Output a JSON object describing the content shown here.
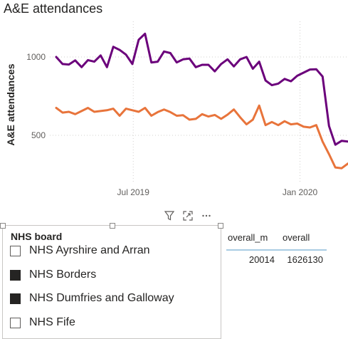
{
  "chart": {
    "title": "A&E attendances",
    "ylabel": "A&E attendances"
  },
  "chart_data": {
    "type": "line",
    "title": "A&E attendances",
    "ylabel": "A&E attendances",
    "xlabel": "",
    "x_start": "2019-04-07",
    "x_step_days": 7,
    "x_tick_labels": [
      "Jul 2019",
      "Jan 2020"
    ],
    "x_tick_dates": [
      "2019-07-01",
      "2020-01-01"
    ],
    "y_ticks": [
      500,
      1000
    ],
    "ylim": [
      250,
      1250
    ],
    "grid": true,
    "series": [
      {
        "color": "#6B007B",
        "values": [
          1000,
          955,
          952,
          978,
          935,
          980,
          970,
          1010,
          935,
          1065,
          1045,
          1015,
          955,
          1110,
          1148,
          965,
          970,
          1035,
          1025,
          965,
          985,
          990,
          935,
          950,
          950,
          908,
          955,
          985,
          940,
          985,
          1000,
          925,
          970,
          850,
          820,
          830,
          860,
          845,
          880,
          900,
          920,
          922,
          875,
          560,
          440,
          465,
          460
        ]
      },
      {
        "color": "#E8743B",
        "values": [
          675,
          645,
          650,
          635,
          655,
          675,
          650,
          655,
          660,
          670,
          625,
          670,
          660,
          650,
          675,
          625,
          648,
          665,
          648,
          625,
          628,
          600,
          605,
          635,
          620,
          630,
          605,
          632,
          665,
          615,
          570,
          600,
          690,
          565,
          585,
          565,
          590,
          570,
          575,
          555,
          550,
          565,
          460,
          380,
          295,
          290,
          320
        ]
      }
    ]
  },
  "slicer": {
    "title": "NHS board",
    "items": [
      {
        "label": "NHS Ayrshire and Arran",
        "checked": false
      },
      {
        "label": "NHS Borders",
        "checked": true
      },
      {
        "label": "NHS Dumfries and Galloway",
        "checked": true
      },
      {
        "label": "NHS Fife",
        "checked": false
      }
    ]
  },
  "table": {
    "headers": [
      "overall_m",
      "overall"
    ],
    "rows": [
      [
        "20014",
        "1626130"
      ]
    ]
  },
  "header_icons": [
    "filter-icon",
    "focus-mode-icon",
    "more-options-icon"
  ]
}
